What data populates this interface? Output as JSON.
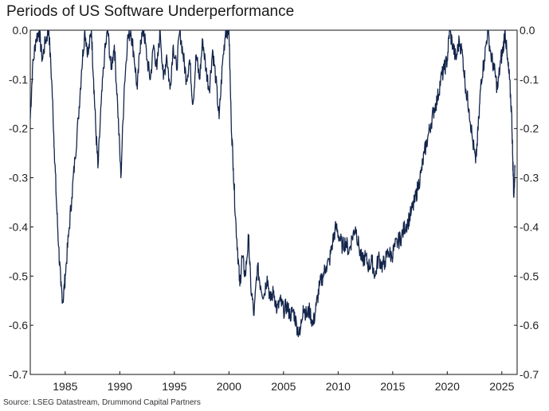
{
  "title": "Periods of US Software Underperformance",
  "source": "Source: LSEG Datastream, Drummond Capital Partners",
  "colors": {
    "line": "#13254b",
    "frame": "#111111",
    "background": "#ffffff"
  },
  "chart_data": {
    "type": "line",
    "title": "Periods of US Software Underperformance",
    "xlabel": "",
    "ylabel": "",
    "xlim": [
      1981.8,
      2026.4
    ],
    "ylim": [
      -0.7,
      0.0
    ],
    "grid": false,
    "x_ticks": [
      1985,
      1990,
      1995,
      2000,
      2005,
      2010,
      2015,
      2020,
      2025
    ],
    "x_tick_labels": [
      "1985",
      "1990",
      "1995",
      "2000",
      "2005",
      "2010",
      "2015",
      "2020",
      "2025"
    ],
    "y_ticks": [
      0.0,
      -0.1,
      -0.2,
      -0.3,
      -0.4,
      -0.5,
      -0.6,
      -0.7
    ],
    "y_tick_labels_left": [
      "0.0",
      "-0.1",
      "-0.2",
      "-0.3",
      "-0.4",
      "-0.5",
      "-0.6",
      "-0.7"
    ],
    "y_tick_labels_right": [
      "0.0",
      "-0.1",
      "-0.2",
      "-0.3",
      "-0.4",
      "-0.5",
      "-0.6",
      "-0.7"
    ],
    "series": [
      {
        "x": [
          1981.8,
          1982.0,
          1982.3,
          1982.6,
          1982.9,
          1983.2,
          1983.5,
          1983.8,
          1984.0,
          1984.2,
          1984.4,
          1984.6,
          1984.8,
          1985.0,
          1985.3,
          1985.6,
          1985.9,
          1986.2,
          1986.5,
          1986.8,
          1987.1,
          1987.4,
          1987.6,
          1987.8,
          1988.0,
          1988.3,
          1988.6,
          1988.9,
          1989.2,
          1989.5,
          1989.8,
          1990.1,
          1990.4,
          1990.7,
          1991.0,
          1991.3,
          1991.6,
          1991.9,
          1992.2,
          1992.5,
          1992.8,
          1993.1,
          1993.4,
          1993.7,
          1994.0,
          1994.3,
          1994.6,
          1994.9,
          1995.2,
          1995.5,
          1995.8,
          1996.1,
          1996.4,
          1996.7,
          1997.0,
          1997.3,
          1997.6,
          1997.9,
          1998.2,
          1998.5,
          1998.8,
          1999.1,
          1999.4,
          1999.7,
          2000.0,
          2000.2,
          2000.4,
          2000.6,
          2000.8,
          2001.0,
          2001.2,
          2001.5,
          2001.8,
          2002.0,
          2002.3,
          2002.6,
          2002.9,
          2003.2,
          2003.5,
          2003.8,
          2004.1,
          2004.4,
          2004.7,
          2005.0,
          2005.3,
          2005.6,
          2005.9,
          2006.2,
          2006.5,
          2006.8,
          2007.1,
          2007.4,
          2007.7,
          2008.0,
          2008.3,
          2008.6,
          2008.9,
          2009.2,
          2009.5,
          2009.8,
          2010.1,
          2010.4,
          2010.7,
          2011.0,
          2011.3,
          2011.6,
          2011.9,
          2012.2,
          2012.5,
          2012.8,
          2013.1,
          2013.4,
          2013.7,
          2014.0,
          2014.3,
          2014.6,
          2014.9,
          2015.2,
          2015.5,
          2015.8,
          2016.1,
          2016.4,
          2016.7,
          2017.0,
          2017.3,
          2017.6,
          2017.9,
          2018.2,
          2018.5,
          2018.8,
          2019.1,
          2019.4,
          2019.7,
          2020.0,
          2020.2,
          2020.5,
          2020.8,
          2021.1,
          2021.4,
          2021.7,
          2022.0,
          2022.3,
          2022.6,
          2022.9,
          2023.1,
          2023.4,
          2023.7,
          2024.0,
          2024.3,
          2024.6,
          2024.9,
          2025.1,
          2025.3,
          2025.5,
          2025.7,
          2025.9,
          2026.0,
          2026.1,
          2026.2
        ],
        "y": [
          -0.18,
          -0.08,
          -0.02,
          0.0,
          -0.06,
          -0.02,
          0.0,
          -0.12,
          -0.24,
          -0.35,
          -0.44,
          -0.52,
          -0.55,
          -0.5,
          -0.42,
          -0.34,
          -0.26,
          -0.18,
          -0.08,
          0.0,
          -0.05,
          0.0,
          -0.1,
          -0.2,
          -0.28,
          -0.15,
          -0.05,
          0.0,
          -0.08,
          -0.03,
          -0.15,
          -0.3,
          -0.12,
          -0.02,
          0.0,
          -0.05,
          -0.12,
          -0.02,
          0.0,
          -0.06,
          -0.1,
          -0.03,
          -0.08,
          0.0,
          -0.1,
          -0.05,
          -0.12,
          -0.03,
          -0.08,
          0.0,
          -0.05,
          -0.1,
          -0.06,
          -0.15,
          -0.05,
          -0.1,
          -0.02,
          -0.08,
          -0.12,
          -0.04,
          -0.1,
          -0.18,
          -0.07,
          0.0,
          0.0,
          -0.18,
          -0.28,
          -0.38,
          -0.45,
          -0.52,
          -0.46,
          -0.5,
          -0.42,
          -0.52,
          -0.58,
          -0.48,
          -0.52,
          -0.54,
          -0.5,
          -0.55,
          -0.53,
          -0.57,
          -0.55,
          -0.57,
          -0.56,
          -0.58,
          -0.57,
          -0.6,
          -0.62,
          -0.56,
          -0.58,
          -0.57,
          -0.6,
          -0.56,
          -0.52,
          -0.5,
          -0.48,
          -0.47,
          -0.43,
          -0.4,
          -0.42,
          -0.44,
          -0.43,
          -0.45,
          -0.42,
          -0.4,
          -0.44,
          -0.47,
          -0.46,
          -0.48,
          -0.47,
          -0.5,
          -0.46,
          -0.48,
          -0.47,
          -0.45,
          -0.46,
          -0.44,
          -0.43,
          -0.42,
          -0.4,
          -0.39,
          -0.37,
          -0.35,
          -0.32,
          -0.29,
          -0.25,
          -0.22,
          -0.19,
          -0.16,
          -0.14,
          -0.1,
          -0.08,
          -0.06,
          0.0,
          -0.03,
          -0.06,
          -0.02,
          -0.05,
          -0.12,
          -0.16,
          -0.22,
          -0.27,
          -0.18,
          -0.1,
          -0.06,
          0.0,
          -0.05,
          -0.08,
          -0.12,
          -0.06,
          -0.04,
          0.0,
          -0.06,
          -0.1,
          -0.17,
          -0.26,
          -0.34,
          -0.28
        ]
      }
    ]
  }
}
